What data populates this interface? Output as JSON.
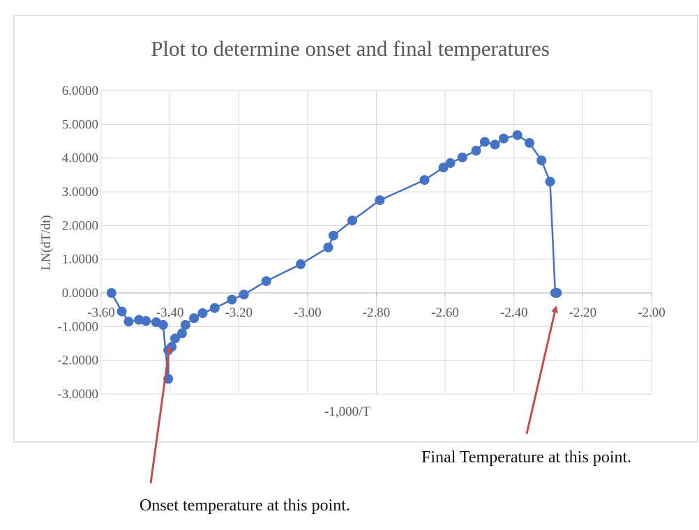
{
  "chart_data": {
    "type": "scatter",
    "title": "Plot to determine onset and final temperatures",
    "xlabel": "-1,000/T",
    "ylabel": "LN(dT/dt)",
    "xlim": [
      -3.6,
      -2.0
    ],
    "ylim": [
      -3.0,
      6.0
    ],
    "x_ticks": [
      -3.6,
      -3.4,
      -3.2,
      -3.0,
      -2.8,
      -2.6,
      -2.4,
      -2.2,
      -2.0
    ],
    "x_tick_labels": [
      "-3.60",
      "-3.40",
      "-3.20",
      "-3.00",
      "-2.80",
      "-2.60",
      "-2.40",
      "-2.20",
      "-2.00"
    ],
    "y_ticks": [
      -3,
      -2,
      -1,
      0,
      1,
      2,
      3,
      4,
      5,
      6
    ],
    "y_tick_labels": [
      "-3.0000",
      "-2.0000",
      "-1.0000",
      "0.0000",
      "1.0000",
      "2.0000",
      "3.0000",
      "4.0000",
      "5.0000",
      "6.0000"
    ],
    "grid": true,
    "legend": "none",
    "series": [
      {
        "color": "#4472C4",
        "marker": "circle",
        "line": true,
        "x": [
          -3.57,
          -3.54,
          -3.52,
          -3.49,
          -3.47,
          -3.44,
          -3.42,
          -3.405,
          -3.405,
          -3.395,
          -3.385,
          -3.365,
          -3.355,
          -3.33,
          -3.305,
          -3.27,
          -3.22,
          -3.185,
          -3.12,
          -3.02,
          -2.94,
          -2.925,
          -2.87,
          -2.79,
          -2.66,
          -2.605,
          -2.585,
          -2.55,
          -2.51,
          -2.485,
          -2.455,
          -2.43,
          -2.39,
          -2.355,
          -2.32,
          -2.295,
          -2.28,
          -2.275
        ],
        "y": [
          0.0,
          -0.55,
          -0.85,
          -0.8,
          -0.83,
          -0.87,
          -0.95,
          -2.55,
          -1.7,
          -1.6,
          -1.35,
          -1.2,
          -0.95,
          -0.75,
          -0.6,
          -0.45,
          -0.2,
          -0.05,
          0.35,
          0.85,
          1.35,
          1.7,
          2.15,
          2.75,
          3.35,
          3.72,
          3.85,
          4.02,
          4.22,
          4.48,
          4.4,
          4.58,
          4.68,
          4.45,
          3.93,
          3.3,
          0.0,
          0.0
        ]
      }
    ],
    "annotations": [
      {
        "text": "Onset temperature  at this  point.",
        "arrow_to": [
          -3.355,
          -1.7
        ]
      },
      {
        "text": "Final  Temperature  at this  point.",
        "arrow_to": [
          -2.28,
          0.0
        ]
      }
    ]
  }
}
